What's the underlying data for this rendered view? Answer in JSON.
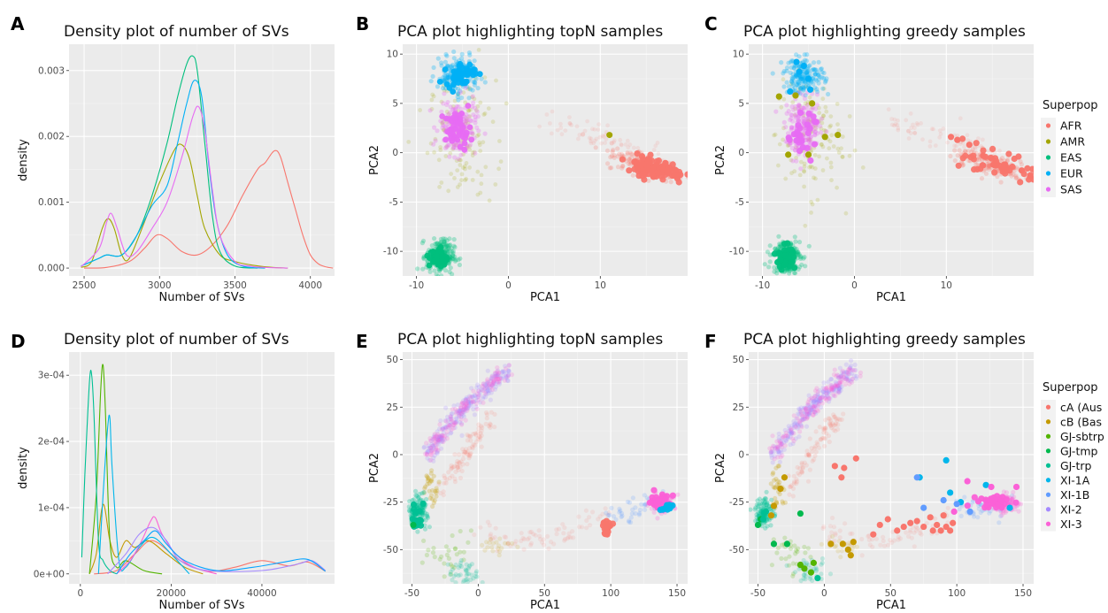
{
  "chart_data": [
    {
      "panel": "A",
      "type": "line",
      "title": "Density plot of number of SVs",
      "xlabel": "Number of SVs",
      "ylabel": "density",
      "xlim": [
        2400,
        4160
      ],
      "ylim": [
        -0.00012,
        0.0034
      ],
      "xticks": [
        2500,
        3000,
        3500,
        4000
      ],
      "xtick_labels": [
        "2500",
        "3000",
        "3500",
        "4000"
      ],
      "yticks": [
        0,
        0.001,
        0.002,
        0.003
      ],
      "ytick_labels": [
        "0.000",
        "0.001",
        "0.002",
        "0.003"
      ],
      "series": [
        {
          "color": "#F8766D",
          "x": [
            2500,
            2650,
            2800,
            2900,
            2980,
            3050,
            3150,
            3250,
            3350,
            3450,
            3550,
            3650,
            3700,
            3760,
            3800,
            3850,
            3900,
            3950,
            4000,
            4050,
            4100,
            4150
          ],
          "y": [
            0,
            1e-05,
            0.0001,
            0.0003,
            0.0005,
            0.00045,
            0.00025,
            0.0002,
            0.00035,
            0.00065,
            0.0011,
            0.0015,
            0.0016,
            0.00178,
            0.0017,
            0.0013,
            0.0009,
            0.0005,
            0.0002,
            7e-05,
            2e-05,
            0
          ]
        },
        {
          "color": "#A3A500",
          "x": [
            2480,
            2550,
            2620,
            2660,
            2700,
            2750,
            2800,
            2900,
            3000,
            3100,
            3150,
            3200,
            3250,
            3300,
            3400,
            3500,
            3600,
            3700,
            3750,
            3850
          ],
          "y": [
            1e-05,
            0.0001,
            0.0006,
            0.00075,
            0.0006,
            0.0002,
            0.00015,
            0.0007,
            0.0013,
            0.0018,
            0.00187,
            0.00165,
            0.0011,
            0.0006,
            0.0002,
            0.0001,
            5e-05,
            2e-05,
            1e-05,
            0
          ]
        },
        {
          "color": "#00BF7D",
          "x": [
            2480,
            2600,
            2650,
            2750,
            2850,
            2950,
            3050,
            3120,
            3180,
            3220,
            3250,
            3300,
            3350,
            3400,
            3500,
            3650
          ],
          "y": [
            3e-05,
            0.00015,
            0.0002,
            0.0002,
            0.0005,
            0.0011,
            0.0019,
            0.0026,
            0.0031,
            0.00322,
            0.003,
            0.0019,
            0.0008,
            0.00025,
            3e-05,
            0
          ]
        },
        {
          "color": "#00B0F6",
          "x": [
            2480,
            2600,
            2650,
            2750,
            2850,
            2950,
            3050,
            3120,
            3180,
            3230,
            3280,
            3330,
            3380,
            3450,
            3550,
            3700
          ],
          "y": [
            3e-05,
            0.00015,
            0.0002,
            0.0002,
            0.0005,
            0.00095,
            0.00125,
            0.0019,
            0.0025,
            0.00285,
            0.0026,
            0.0015,
            0.0007,
            0.0002,
            3e-05,
            0
          ]
        },
        {
          "color": "#E76BF3",
          "x": [
            2480,
            2600,
            2650,
            2680,
            2720,
            2780,
            2850,
            2950,
            3050,
            3150,
            3220,
            3260,
            3300,
            3350,
            3400,
            3500,
            3600,
            3700,
            3850
          ],
          "y": [
            2e-05,
            0.0003,
            0.0007,
            0.00083,
            0.0006,
            0.0002,
            0.00025,
            0.0006,
            0.001,
            0.0017,
            0.0023,
            0.00245,
            0.0021,
            0.0012,
            0.0005,
            0.0001,
            3e-05,
            1e-05,
            0
          ]
        }
      ]
    },
    {
      "panel": "B",
      "type": "scatter",
      "title": "PCA plot highlighting topN samples",
      "xlabel": "PCA1",
      "ylabel": "PCA2",
      "xlim": [
        -11.5,
        19.5
      ],
      "ylim": [
        -12.5,
        11
      ],
      "xticks": [
        -10,
        0,
        10
      ],
      "xtick_labels": [
        "-10",
        "0",
        "10"
      ],
      "yticks": [
        -10,
        -5,
        0,
        5,
        10
      ],
      "ytick_labels": [
        "-10",
        "-5",
        "0",
        "5",
        "10"
      ]
    },
    {
      "panel": "C",
      "type": "scatter",
      "title": "PCA plot highlighting greedy samples",
      "xlabel": "PCA1",
      "ylabel": "PCA2",
      "xlim": [
        -11.5,
        19.5
      ],
      "ylim": [
        -12.5,
        11
      ],
      "xticks": [
        -10,
        0,
        10
      ],
      "xtick_labels": [
        "-10",
        "0",
        "10"
      ],
      "yticks": [
        -10,
        -5,
        0,
        5,
        10
      ],
      "ytick_labels": [
        "-10",
        "-5",
        "0",
        "5",
        "10"
      ],
      "legend": {
        "title": "Superpop",
        "placement": "right",
        "entries": [
          {
            "label": "AFR",
            "color": "#F8766D"
          },
          {
            "label": "AMR",
            "color": "#A3A500"
          },
          {
            "label": "EAS",
            "color": "#00BF7D"
          },
          {
            "label": "EUR",
            "color": "#00B0F6"
          },
          {
            "label": "SAS",
            "color": "#E76BF3"
          }
        ]
      }
    },
    {
      "panel": "D",
      "type": "line",
      "title": "Density plot of number of SVs",
      "xlabel": "Number of SVs",
      "ylabel": "density",
      "xlim": [
        -2500,
        56000
      ],
      "ylim": [
        -1.5e-05,
        0.000335
      ],
      "xticks": [
        0,
        20000,
        40000
      ],
      "xtick_labels": [
        "0",
        "20000",
        "40000"
      ],
      "yticks": [
        0,
        0.0001,
        0.0002,
        0.0003
      ],
      "ytick_labels": [
        "0e+00",
        "1e-04",
        "2e-04",
        "3e-04"
      ],
      "series": [
        {
          "color": "#F8766D",
          "x": [
            3000,
            8000,
            12000,
            16000,
            22000,
            28000,
            34000,
            40000,
            46000,
            50000,
            54000
          ],
          "y": [
            0,
            5e-06,
            3e-05,
            5e-05,
            2e-05,
            4e-06,
            1e-05,
            2e-05,
            1.2e-05,
            1.8e-05,
            4e-06
          ]
        },
        {
          "color": "#C49A00",
          "x": [
            2000,
            3500,
            5000,
            6500,
            8000,
            10000,
            12000,
            15000,
            19000,
            23000,
            27000
          ],
          "y": [
            0,
            3e-05,
            0.000105,
            5e-05,
            2.5e-05,
            5e-05,
            4e-05,
            5e-05,
            3e-05,
            1e-05,
            0
          ]
        },
        {
          "color": "#53B400",
          "x": [
            2000,
            3500,
            4500,
            5000,
            5500,
            6500,
            8000,
            10000,
            14000,
            18000
          ],
          "y": [
            0,
            0.00012,
            0.00028,
            0.000315,
            0.00025,
            5e-05,
            1e-05,
            2e-05,
            5e-06,
            0
          ]
        },
        {
          "color": "#00C094",
          "x": [
            300,
            1000,
            2000,
            2500,
            3000,
            4000,
            5000,
            6500,
            8000
          ],
          "y": [
            2.5e-05,
            0.00015,
            0.00029,
            0.0003,
            0.00024,
            5e-05,
            2e-05,
            5e-06,
            0
          ]
        },
        {
          "color": "#00B6EB",
          "x": [
            4000,
            5000,
            6000,
            6500,
            7000,
            8500,
            10000,
            13000,
            16000,
            20000,
            24000
          ],
          "y": [
            0,
            0.00012,
            0.00022,
            0.000235,
            0.00016,
            2e-05,
            1e-05,
            4e-05,
            5.5e-05,
            3e-05,
            0
          ]
        },
        {
          "color": "#FB61D7",
          "x": [
            8000,
            11000,
            13500,
            15500,
            16500,
            18000,
            21000,
            25000,
            30000
          ],
          "y": [
            0,
            2e-05,
            5e-05,
            8e-05,
            8.5e-05,
            6e-05,
            3e-05,
            1e-05,
            0
          ]
        },
        {
          "color": "#A58AFF",
          "x": [
            6000,
            10000,
            13000,
            16000,
            19000,
            22000,
            28000,
            40000,
            48000,
            51000,
            54000
          ],
          "y": [
            0,
            3e-05,
            6e-05,
            7e-05,
            5e-05,
            2e-05,
            5e-06,
            5e-06,
            1.5e-05,
            2e-05,
            5e-06
          ]
        },
        {
          "color": "#06A4FF",
          "x": [
            8000,
            11000,
            14000,
            16500,
            19000,
            23000,
            30000,
            38000,
            45000,
            50000,
            54000
          ],
          "y": [
            0,
            3e-05,
            5e-05,
            6.5e-05,
            4.5e-05,
            2e-05,
            5e-06,
            1e-05,
            1.8e-05,
            2.2e-05,
            4e-06
          ]
        }
      ]
    },
    {
      "panel": "E",
      "type": "scatter",
      "title": "PCA plot highlighting topN samples",
      "xlabel": "PCA1",
      "ylabel": "PCA2",
      "xlim": [
        -57,
        158
      ],
      "ylim": [
        -68,
        54
      ],
      "xticks": [
        -50,
        0,
        50,
        100,
        150
      ],
      "xtick_labels": [
        "-50",
        "0",
        "50",
        "100",
        "150"
      ],
      "yticks": [
        -50,
        -25,
        0,
        25,
        50
      ],
      "ytick_labels": [
        "-50",
        "-25",
        "0",
        "25",
        "50"
      ]
    },
    {
      "panel": "F",
      "type": "scatter",
      "title": "PCA plot highlighting greedy samples",
      "xlabel": "PCA1",
      "ylabel": "PCA2",
      "xlim": [
        -57,
        158
      ],
      "ylim": [
        -68,
        54
      ],
      "xticks": [
        -50,
        0,
        50,
        100,
        150
      ],
      "xtick_labels": [
        "-50",
        "0",
        "50",
        "100",
        "150"
      ],
      "yticks": [
        -50,
        -25,
        0,
        25,
        50
      ],
      "ytick_labels": [
        "-50",
        "-25",
        "0",
        "25",
        "50"
      ],
      "legend": {
        "title": "Superpop",
        "placement": "right",
        "entries": [
          {
            "label": "cA (Aus",
            "color": "#F8766D"
          },
          {
            "label": "cB (Bas",
            "color": "#C49A00"
          },
          {
            "label": "GJ-sbtrp",
            "color": "#53B400"
          },
          {
            "label": "GJ-tmp",
            "color": "#00B94E"
          },
          {
            "label": "GJ-trp",
            "color": "#00C094"
          },
          {
            "label": "XI-1A",
            "color": "#00B6EB"
          },
          {
            "label": "XI-1B",
            "color": "#619CFF"
          },
          {
            "label": "XI-2",
            "color": "#A58AFF"
          },
          {
            "label": "XI-3",
            "color": "#FB61D7"
          }
        ]
      }
    }
  ]
}
